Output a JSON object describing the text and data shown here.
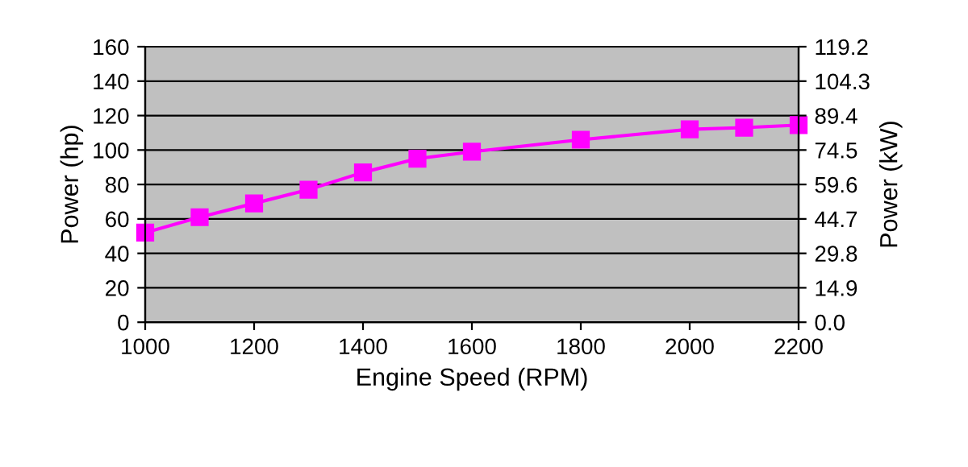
{
  "chart_data": {
    "type": "line",
    "xlabel": "Engine Speed (RPM)",
    "ylabel": "Power (hp)",
    "y2label": "Power (kW)",
    "x": [
      1000,
      1100,
      1200,
      1300,
      1400,
      1500,
      1600,
      1800,
      2000,
      2100,
      2200
    ],
    "series": [
      {
        "color": "#ff00ff",
        "values": [
          52,
          61,
          69,
          77,
          87,
          95,
          99,
          106,
          112,
          113,
          114.5
        ]
      }
    ],
    "xlim": [
      1000,
      2200
    ],
    "xticks": [
      1000,
      1200,
      1400,
      1600,
      1800,
      2000,
      2200
    ],
    "ylim": [
      0,
      160
    ],
    "yticks": [
      0,
      20,
      40,
      60,
      80,
      100,
      120,
      140,
      160
    ],
    "y2lim": [
      0,
      119.2
    ],
    "y2ticks": [
      {
        "value": 0,
        "label": "0.0"
      },
      14.9,
      29.8,
      44.7,
      59.6,
      74.5,
      89.4,
      104.3,
      119.2
    ],
    "grid": "y",
    "marker": "square",
    "line_style": "solid"
  }
}
